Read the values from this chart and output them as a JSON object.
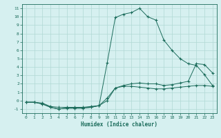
{
  "xlabel": "Humidex (Indice chaleur)",
  "bg_color": "#d6f0f0",
  "line_color": "#1a6b5a",
  "grid_color": "#b0d8d4",
  "xlim": [
    -0.5,
    23.5
  ],
  "ylim": [
    -1.5,
    11.5
  ],
  "xticks": [
    0,
    1,
    2,
    3,
    4,
    5,
    6,
    7,
    8,
    9,
    10,
    11,
    12,
    13,
    14,
    15,
    16,
    17,
    18,
    19,
    20,
    21,
    22,
    23
  ],
  "yticks": [
    -1,
    0,
    1,
    2,
    3,
    4,
    5,
    6,
    7,
    8,
    9,
    10,
    11
  ],
  "curve1_x": [
    0,
    1,
    2,
    3,
    4,
    5,
    6,
    7,
    8,
    9,
    10,
    11,
    12,
    13,
    14,
    15,
    16,
    17,
    18,
    19,
    20,
    21,
    22,
    23
  ],
  "curve1_y": [
    -0.2,
    -0.2,
    -0.3,
    -0.7,
    -0.8,
    -0.8,
    -0.8,
    -0.8,
    -0.7,
    -0.6,
    4.5,
    9.9,
    10.3,
    10.5,
    11.0,
    10.0,
    9.6,
    7.2,
    6.0,
    5.0,
    4.4,
    4.2,
    3.1,
    1.8
  ],
  "curve2_x": [
    0,
    1,
    2,
    3,
    4,
    5,
    6,
    7,
    8,
    9,
    10,
    11,
    12,
    13,
    14,
    15,
    16,
    17,
    18,
    19,
    20,
    21,
    22,
    23
  ],
  "curve2_y": [
    -0.2,
    -0.2,
    -0.4,
    -0.8,
    -1.0,
    -0.9,
    -0.9,
    -0.9,
    -0.8,
    -0.6,
    0.3,
    1.5,
    1.8,
    2.0,
    2.1,
    2.0,
    2.0,
    1.8,
    1.9,
    2.1,
    2.3,
    4.4,
    4.3,
    3.3
  ],
  "curve3_x": [
    0,
    1,
    2,
    3,
    4,
    5,
    6,
    7,
    8,
    9,
    10,
    11,
    12,
    13,
    14,
    15,
    16,
    17,
    18,
    19,
    20,
    21,
    22,
    23
  ],
  "curve3_y": [
    -0.2,
    -0.2,
    -0.4,
    -0.8,
    -1.0,
    -0.9,
    -0.9,
    -0.9,
    -0.8,
    -0.6,
    0.0,
    1.5,
    1.7,
    1.7,
    1.6,
    1.5,
    1.4,
    1.4,
    1.5,
    1.6,
    1.7,
    1.8,
    1.8,
    1.7
  ]
}
